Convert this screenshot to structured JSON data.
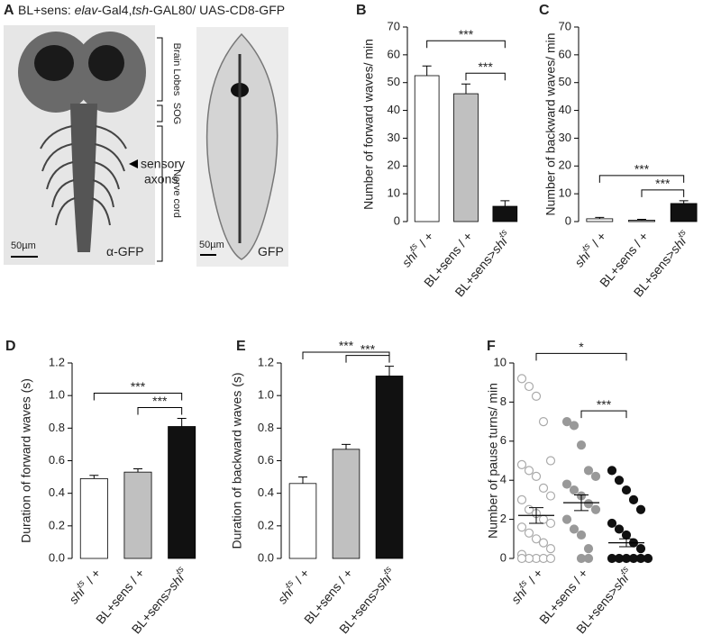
{
  "panel_a": {
    "letter": "A",
    "title": [
      {
        "t": "BL+sens: "
      },
      {
        "t": "elav",
        "i": true
      },
      {
        "t": "-Gal4,"
      },
      {
        "t": "tsh",
        "i": true
      },
      {
        "t": "-GAL80/ UAS-CD8-GFP"
      }
    ],
    "regions": [
      "Brain Lobes",
      "SOG",
      "Nerve cord"
    ],
    "arrow_label": [
      "sensory",
      "axons"
    ],
    "scale_left": "50µm",
    "stain_left": "α-GFP",
    "scale_right": "50µm",
    "stain_right": "GFP"
  },
  "chart_data": [
    {
      "type": "bar",
      "panel": "B",
      "y_label": "Number of forward waves/ min",
      "categories": [
        [
          {
            "t": "shi",
            "i": true
          },
          {
            "t": "ts",
            "i": true,
            "sup": true
          },
          {
            "t": " / +"
          }
        ],
        [
          {
            "t": "BL+sens / +"
          }
        ],
        [
          {
            "t": "BL+sens>"
          },
          {
            "t": "shi",
            "i": true
          },
          {
            "t": "ts",
            "i": true,
            "sup": true
          }
        ]
      ],
      "values": [
        52.5,
        46,
        5.5
      ],
      "errors": [
        3.5,
        3.5,
        2
      ],
      "colors": [
        "#ffffff",
        "#c0c0c0",
        "#111111"
      ],
      "ylim": [
        0,
        70
      ],
      "yticks": [
        0,
        10,
        20,
        30,
        40,
        50,
        60,
        70
      ],
      "significance": [
        {
          "from": 0,
          "to": 2,
          "label": "***"
        },
        {
          "from": 1,
          "to": 2,
          "label": "***"
        }
      ]
    },
    {
      "type": "bar",
      "panel": "C",
      "y_label": "Number of backward waves/ min",
      "categories": [
        [
          {
            "t": "shi",
            "i": true
          },
          {
            "t": "ts",
            "i": true,
            "sup": true
          },
          {
            "t": " / +"
          }
        ],
        [
          {
            "t": "BL+sens / +"
          }
        ],
        [
          {
            "t": "BL+sens>"
          },
          {
            "t": "shi",
            "i": true
          },
          {
            "t": "ts",
            "i": true,
            "sup": true
          }
        ]
      ],
      "values": [
        1,
        0.5,
        6.5
      ],
      "errors": [
        0.5,
        0.3,
        1
      ],
      "colors": [
        "#ffffff",
        "#c0c0c0",
        "#111111"
      ],
      "ylim": [
        0,
        70
      ],
      "yticks": [
        0,
        10,
        20,
        30,
        40,
        50,
        60,
        70
      ],
      "significance": [
        {
          "from": 0,
          "to": 2,
          "label": "***"
        },
        {
          "from": 1,
          "to": 2,
          "label": "***"
        }
      ]
    },
    {
      "type": "bar",
      "panel": "D",
      "y_label": "Duration of forward waves (s)",
      "categories": [
        [
          {
            "t": "shi",
            "i": true
          },
          {
            "t": "ts",
            "i": true,
            "sup": true
          },
          {
            "t": " / +"
          }
        ],
        [
          {
            "t": "BL+sens / +"
          }
        ],
        [
          {
            "t": "BL+sens>"
          },
          {
            "t": "shi",
            "i": true
          },
          {
            "t": "ts",
            "i": true,
            "sup": true
          }
        ]
      ],
      "values": [
        0.49,
        0.53,
        0.81
      ],
      "errors": [
        0.02,
        0.02,
        0.05
      ],
      "colors": [
        "#ffffff",
        "#c0c0c0",
        "#111111"
      ],
      "ylim": [
        0,
        1.2
      ],
      "yticks": [
        {
          "value": 0,
          "label": "0.0"
        },
        0.2,
        0.4,
        0.6,
        0.8,
        {
          "value": 1,
          "label": "1.0"
        },
        1.2
      ],
      "significance": [
        {
          "from": 0,
          "to": 2,
          "label": "***"
        },
        {
          "from": 1,
          "to": 2,
          "label": "***"
        }
      ]
    },
    {
      "type": "bar",
      "panel": "E",
      "y_label": "Duration of backward waves (s)",
      "categories": [
        [
          {
            "t": "shi",
            "i": true
          },
          {
            "t": "ts",
            "i": true,
            "sup": true
          },
          {
            "t": " / +"
          }
        ],
        [
          {
            "t": "BL+sens / +"
          }
        ],
        [
          {
            "t": "BL+sens>"
          },
          {
            "t": "shi",
            "i": true
          },
          {
            "t": "ts",
            "i": true,
            "sup": true
          }
        ]
      ],
      "values": [
        0.46,
        0.67,
        1.12
      ],
      "errors": [
        0.04,
        0.03,
        0.06
      ],
      "colors": [
        "#ffffff",
        "#c0c0c0",
        "#111111"
      ],
      "ylim": [
        0,
        1.2
      ],
      "yticks": [
        {
          "value": 0,
          "label": "0.0"
        },
        0.2,
        0.4,
        0.6,
        0.8,
        {
          "value": 1,
          "label": "1.0"
        },
        1.2
      ],
      "significance": [
        {
          "from": 0,
          "to": 2,
          "label": "***"
        },
        {
          "from": 1,
          "to": 2,
          "label": "***"
        }
      ]
    },
    {
      "type": "dot",
      "panel": "F",
      "y_label": "Number of pause turns/ min",
      "categories": [
        [
          {
            "t": "shi",
            "i": true
          },
          {
            "t": "ts",
            "i": true,
            "sup": true
          },
          {
            "t": " / +"
          }
        ],
        [
          {
            "t": "BL+sens / +"
          }
        ],
        [
          {
            "t": "BL+sens>"
          },
          {
            "t": "shi",
            "i": true
          },
          {
            "t": "ts",
            "i": true,
            "sup": true
          }
        ]
      ],
      "points": [
        [
          9.2,
          8.8,
          8.3,
          7.0,
          5.0,
          4.8,
          4.5,
          4.2,
          3.6,
          3.2,
          3.0,
          2.5,
          2.3,
          2.0,
          1.8,
          1.6,
          1.3,
          1.0,
          0.8,
          0.5,
          0.2,
          0,
          0,
          0,
          0,
          0
        ],
        [
          7.0,
          6.8,
          5.8,
          4.5,
          4.2,
          3.8,
          3.5,
          3.2,
          2.8,
          2.5,
          2.0,
          1.5,
          1.2,
          0.5,
          0,
          0
        ],
        [
          4.5,
          4.0,
          3.5,
          3.0,
          2.5,
          1.8,
          1.5,
          1.2,
          0.8,
          0.5,
          0,
          0,
          0,
          0,
          0,
          0
        ]
      ],
      "means": [
        2.2,
        2.85,
        0.8
      ],
      "sems": [
        0.4,
        0.4,
        0.2
      ],
      "point_fills": [
        "#ffffff",
        "#999999",
        "#111111"
      ],
      "point_strokes": [
        "#aaaaaa",
        "#999999",
        "#111111"
      ],
      "ylim": [
        0,
        10
      ],
      "yticks": [
        0,
        2,
        4,
        6,
        8,
        10
      ],
      "significance": [
        {
          "from": 0,
          "to": 2,
          "label": "*"
        },
        {
          "from": 1,
          "to": 2,
          "label": "***"
        }
      ]
    }
  ]
}
